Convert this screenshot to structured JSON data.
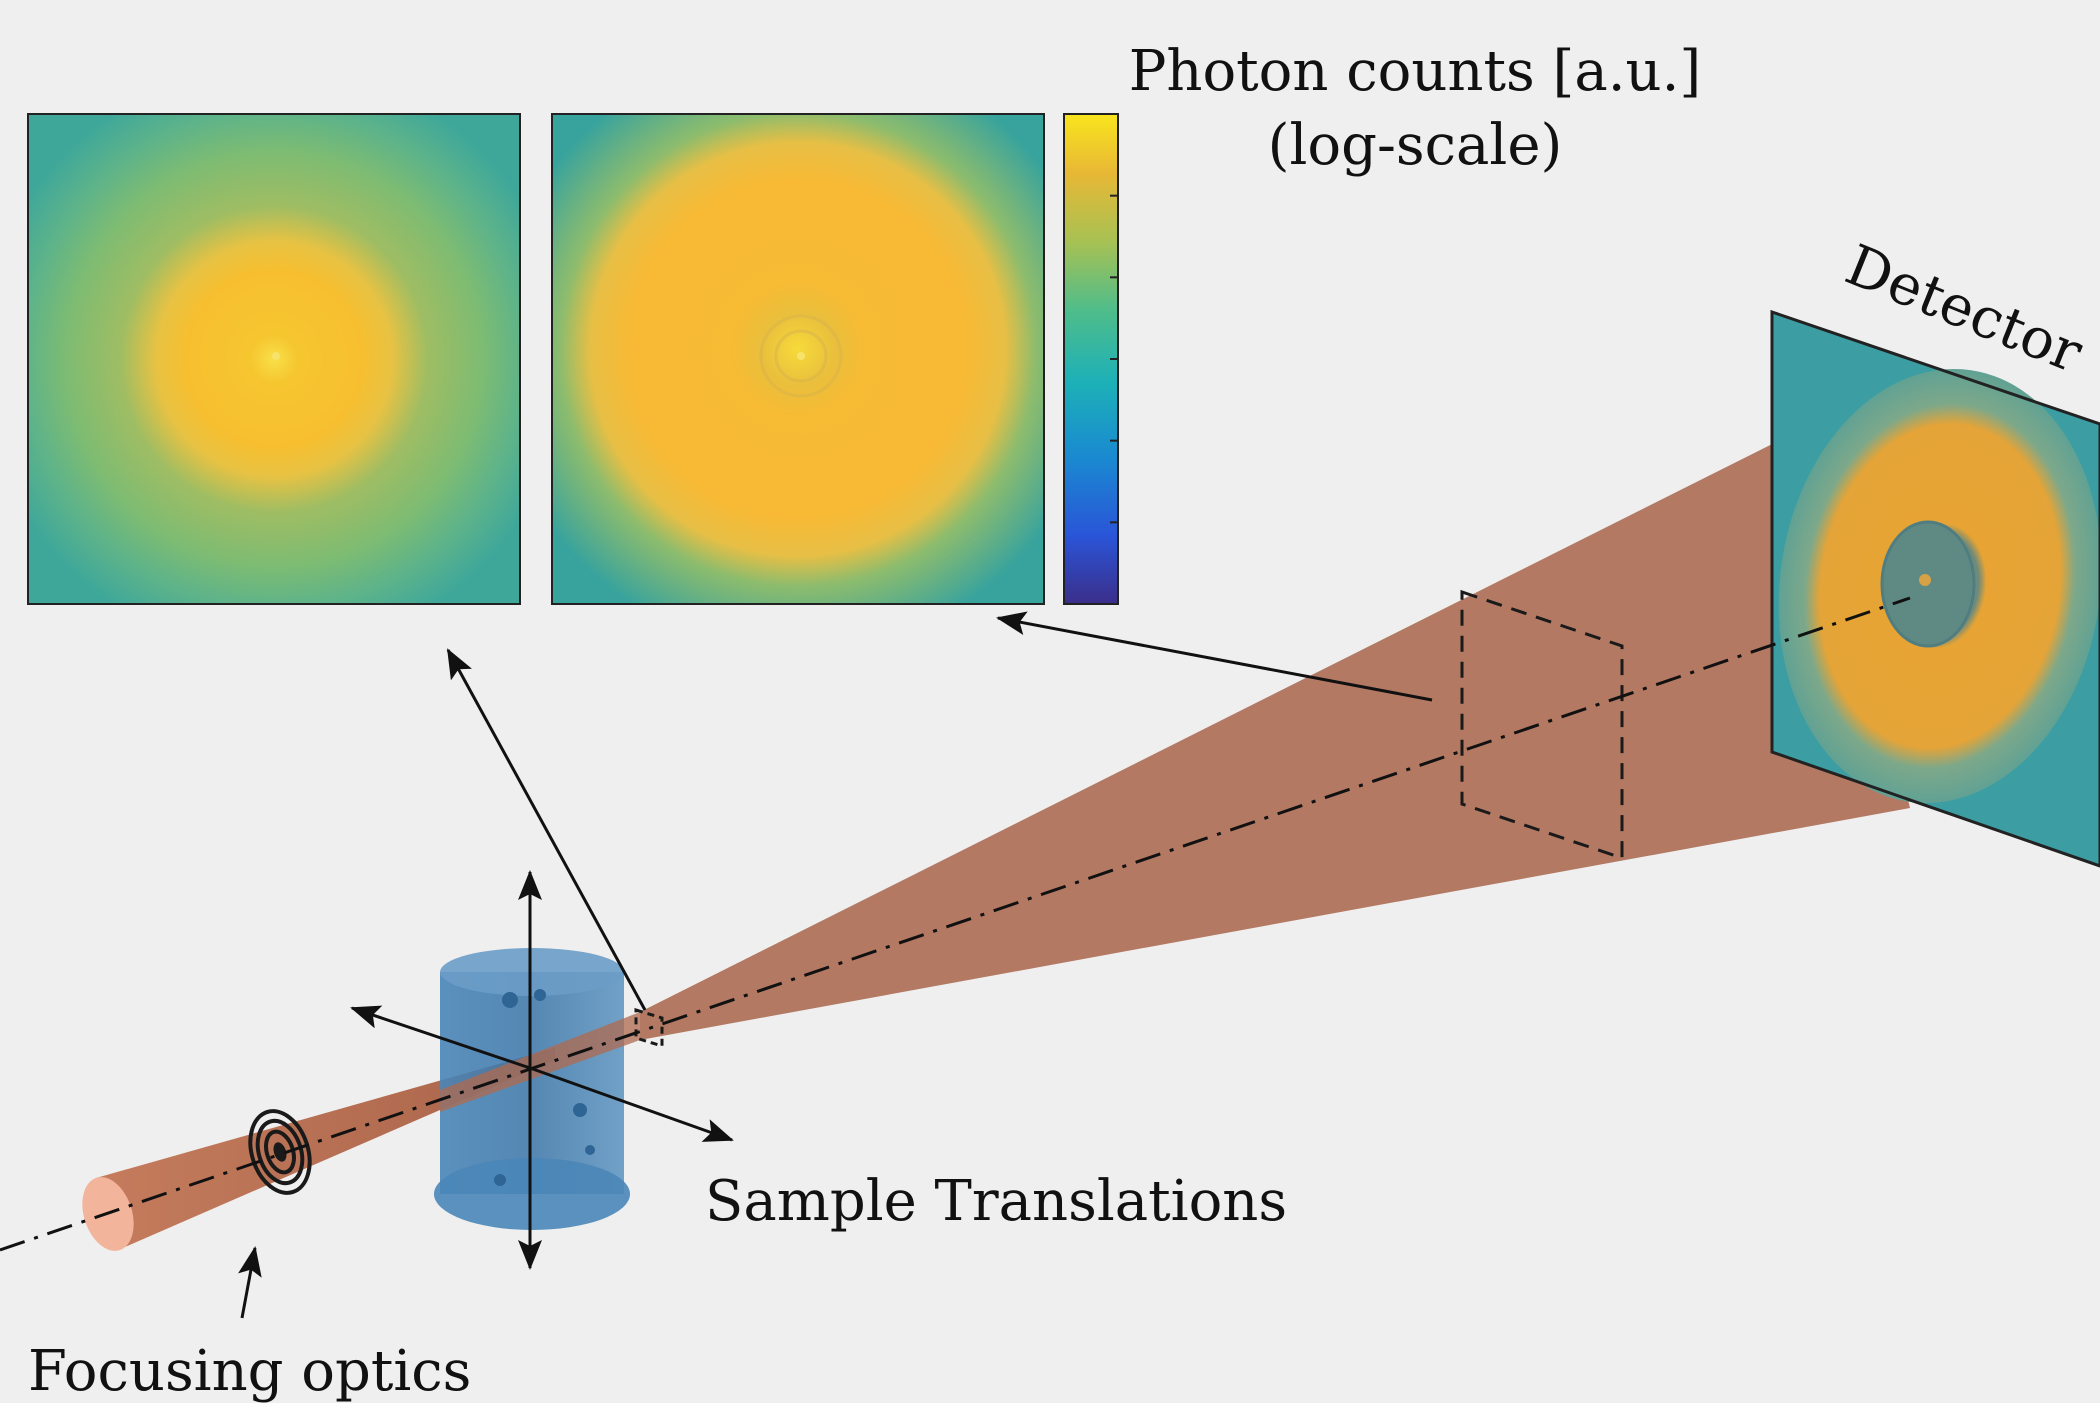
{
  "labels": {
    "colorbar_title_line1": "Photon counts [a.u.]",
    "colorbar_title_line2": "(log-scale)",
    "detector": "Detector",
    "sample_translations": "Sample Translations",
    "focusing_optics": "Focusing optics"
  },
  "colorbar": {
    "stops": [
      "#3b2e8a",
      "#2a55d8",
      "#1a8ad0",
      "#1cb0b8",
      "#4fbd8a",
      "#a8c153",
      "#e8b835",
      "#f9e51d"
    ],
    "tick_count": 5
  },
  "colors": {
    "background": "#efefef",
    "beam": "#a8644a",
    "sample": "#3f7fb3",
    "hologram_ring": "#f7b32b",
    "hologram_core": "#fbd02a",
    "hologram_bg": "#45a79a"
  }
}
